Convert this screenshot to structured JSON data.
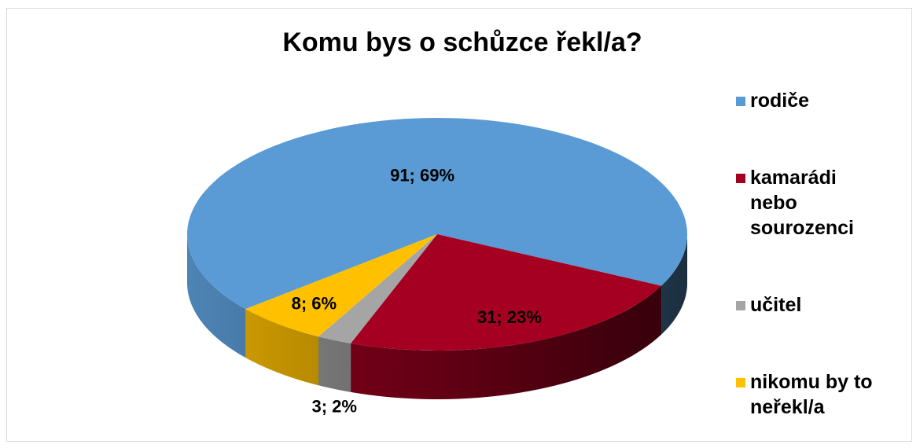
{
  "chart_data": {
    "type": "pie3d",
    "title": "Komu bys o schůzce řekl/a?",
    "categories": [
      "rodiče",
      "kamarádi nebo sourozenci",
      "učitel",
      "nikomu by to neřekl/a"
    ],
    "values": [
      91,
      31,
      3,
      8
    ],
    "value_labels": [
      "91; 69%",
      "31; 23%",
      "3; 2%",
      "8; 6%"
    ],
    "colors": [
      "#5b9bd5",
      "#a50021",
      "#a5a5a5",
      "#ffc000"
    ],
    "legend": "right"
  }
}
